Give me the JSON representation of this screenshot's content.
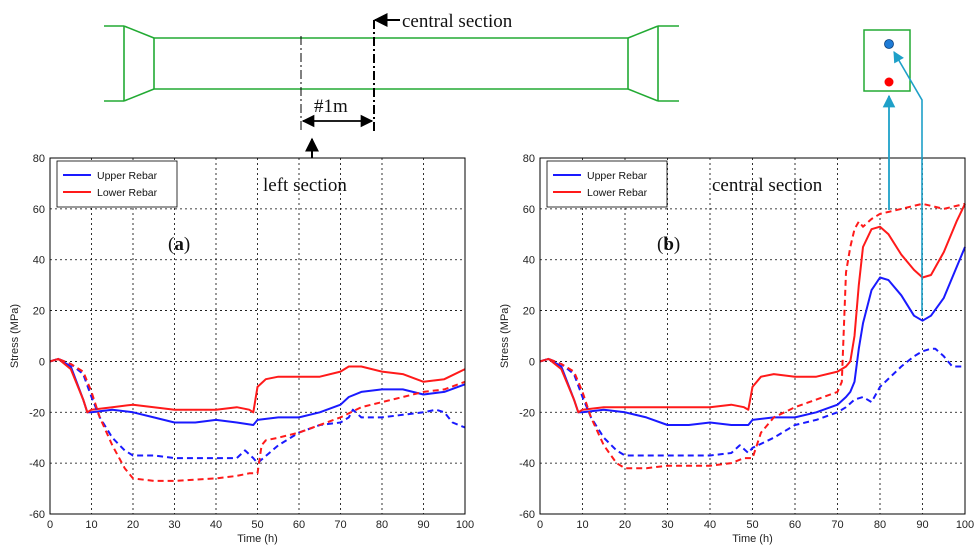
{
  "diagram": {
    "central_label": "central section",
    "left_label": "left section",
    "dimension_label": "#1m"
  },
  "colors": {
    "upper": "#1a1aff",
    "lower": "#ff1a1a",
    "beam": "#22aa33",
    "arrow_cyan": "#1ea0c8",
    "rebar_upper_dot": "#1e7bd6",
    "rebar_lower_dot": "#ff0000"
  },
  "chart_data": [
    {
      "type": "line",
      "panel_label": {
        "open": "(",
        "letter": "a",
        "close": ")"
      },
      "annotation": "left section",
      "xlabel": "Time (h)",
      "ylabel": "Stress (MPa)",
      "xlim": [
        0,
        100
      ],
      "ylim": [
        -60,
        80
      ],
      "xticks": [
        "0",
        "10",
        "20",
        "30",
        "40",
        "50",
        "60",
        "70",
        "80",
        "90",
        "100"
      ],
      "yticks": [
        "80",
        "60",
        "40",
        "20",
        "0",
        "-20",
        "-40",
        "-60"
      ],
      "grid": true,
      "legend_position": "top-left",
      "legend": [
        "Upper Rebar",
        "Lower Rebar"
      ],
      "series": [
        {
          "name": "Upper Rebar",
          "style": "solid",
          "color": "upper",
          "x": [
            0,
            2,
            5,
            8,
            9,
            10,
            15,
            20,
            25,
            30,
            35,
            40,
            45,
            49,
            50,
            55,
            60,
            65,
            70,
            72,
            75,
            80,
            85,
            90,
            95,
            100
          ],
          "y": [
            0,
            1,
            -2,
            -15,
            -20,
            -20,
            -19,
            -20,
            -22,
            -24,
            -24,
            -23,
            -24,
            -25,
            -23,
            -22,
            -22,
            -20,
            -17,
            -14,
            -12,
            -11,
            -11,
            -13,
            -12,
            -9
          ]
        },
        {
          "name": "Lower Rebar",
          "style": "solid",
          "color": "lower",
          "x": [
            0,
            2,
            5,
            8,
            9,
            10,
            15,
            20,
            25,
            30,
            35,
            40,
            45,
            48,
            49,
            50,
            52,
            55,
            60,
            65,
            70,
            72,
            75,
            80,
            85,
            90,
            95,
            100
          ],
          "y": [
            0,
            1,
            -3,
            -15,
            -20,
            -19,
            -18,
            -17,
            -18,
            -19,
            -19,
            -19,
            -18,
            -19,
            -20,
            -10,
            -7,
            -6,
            -6,
            -6,
            -4,
            -2,
            -2,
            -4,
            -5,
            -8,
            -7,
            -3
          ]
        },
        {
          "name": "Upper Rebar",
          "style": "dashed",
          "color": "upper",
          "x": [
            0,
            2,
            5,
            8,
            10,
            12,
            15,
            18,
            20,
            25,
            30,
            40,
            45,
            47,
            49,
            50,
            55,
            60,
            65,
            70,
            72,
            73,
            75,
            80,
            85,
            90,
            93,
            95,
            97,
            100
          ],
          "y": [
            0,
            1,
            -1,
            -5,
            -14,
            -22,
            -30,
            -35,
            -37,
            -37,
            -38,
            -38,
            -38,
            -35,
            -38,
            -40,
            -33,
            -28,
            -25,
            -24,
            -22,
            -19,
            -22,
            -22,
            -21,
            -20,
            -19,
            -20,
            -24,
            -26
          ]
        },
        {
          "name": "Lower Rebar",
          "style": "dashed",
          "color": "lower",
          "x": [
            0,
            2,
            5,
            8,
            10,
            12,
            15,
            18,
            20,
            25,
            30,
            40,
            45,
            48,
            50,
            51,
            52,
            55,
            60,
            65,
            70,
            75,
            80,
            85,
            90,
            95,
            100
          ],
          "y": [
            0,
            1,
            -1,
            -4,
            -12,
            -22,
            -33,
            -42,
            -46,
            -47,
            -47,
            -46,
            -45,
            -44,
            -44,
            -33,
            -31,
            -30,
            -28,
            -25,
            -22,
            -18,
            -16,
            -14,
            -12,
            -11,
            -8
          ]
        }
      ]
    },
    {
      "type": "line",
      "panel_label": {
        "open": "(",
        "letter": "b",
        "close": ")"
      },
      "annotation": "central section",
      "xlabel": "Time (h)",
      "ylabel": "Stress (MPa)",
      "xlim": [
        0,
        100
      ],
      "ylim": [
        -60,
        80
      ],
      "xticks": [
        "0",
        "10",
        "20",
        "30",
        "40",
        "50",
        "60",
        "70",
        "80",
        "90",
        "100"
      ],
      "yticks": [
        "80",
        "60",
        "40",
        "20",
        "0",
        "-20",
        "-40",
        "-60"
      ],
      "grid": true,
      "legend_position": "top-left",
      "legend": [
        "Upper Rebar",
        "Lower Rebar"
      ],
      "series": [
        {
          "name": "Upper Rebar",
          "style": "solid",
          "color": "upper",
          "x": [
            0,
            2,
            5,
            8,
            9,
            10,
            15,
            20,
            25,
            30,
            35,
            40,
            45,
            49,
            50,
            55,
            60,
            65,
            70,
            72,
            73,
            74,
            75,
            76,
            78,
            80,
            82,
            85,
            88,
            90,
            92,
            95,
            100
          ],
          "y": [
            0,
            1,
            -2,
            -15,
            -20,
            -20,
            -19,
            -20,
            -22,
            -25,
            -25,
            -24,
            -25,
            -25,
            -23,
            -22,
            -22,
            -20,
            -17,
            -14,
            -12,
            -8,
            5,
            15,
            28,
            33,
            32,
            26,
            18,
            16,
            18,
            25,
            45
          ]
        },
        {
          "name": "Lower Rebar",
          "style": "solid",
          "color": "lower",
          "x": [
            0,
            2,
            5,
            8,
            9,
            10,
            15,
            20,
            25,
            30,
            35,
            40,
            45,
            48,
            49,
            50,
            52,
            55,
            60,
            65,
            70,
            72,
            73,
            74,
            75,
            76,
            78,
            80,
            82,
            85,
            88,
            90,
            92,
            95,
            98,
            100
          ],
          "y": [
            0,
            1,
            -3,
            -15,
            -20,
            -19,
            -18,
            -18,
            -18,
            -18,
            -18,
            -18,
            -17,
            -18,
            -19,
            -10,
            -6,
            -5,
            -6,
            -6,
            -4,
            -2,
            0,
            10,
            30,
            45,
            52,
            53,
            50,
            42,
            36,
            33,
            34,
            43,
            55,
            62
          ]
        },
        {
          "name": "Upper Rebar",
          "style": "dashed",
          "color": "upper",
          "x": [
            0,
            2,
            5,
            8,
            10,
            12,
            15,
            18,
            20,
            25,
            30,
            40,
            45,
            47,
            49,
            50,
            55,
            60,
            65,
            70,
            72,
            74,
            76,
            78,
            80,
            85,
            88,
            90,
            92,
            93,
            95,
            97,
            100
          ],
          "y": [
            0,
            1,
            -1,
            -5,
            -14,
            -22,
            -30,
            -35,
            -37,
            -37,
            -37,
            -37,
            -36,
            -33,
            -36,
            -34,
            -30,
            -25,
            -23,
            -20,
            -18,
            -15,
            -14,
            -16,
            -10,
            -2,
            2,
            4,
            5,
            5,
            2,
            -2,
            -2
          ]
        },
        {
          "name": "Lower Rebar",
          "style": "dashed",
          "color": "lower",
          "x": [
            0,
            2,
            5,
            8,
            10,
            12,
            15,
            18,
            20,
            25,
            30,
            40,
            45,
            48,
            50,
            51,
            52,
            55,
            60,
            65,
            70,
            71,
            72,
            73,
            74,
            75,
            76,
            78,
            80,
            85,
            90,
            95,
            100
          ],
          "y": [
            0,
            1,
            -1,
            -4,
            -12,
            -22,
            -33,
            -40,
            -42,
            -42,
            -41,
            -41,
            -40,
            -38,
            -38,
            -33,
            -28,
            -22,
            -18,
            -15,
            -12,
            -8,
            35,
            45,
            52,
            55,
            53,
            56,
            58,
            60,
            62,
            60,
            62
          ]
        }
      ]
    }
  ]
}
